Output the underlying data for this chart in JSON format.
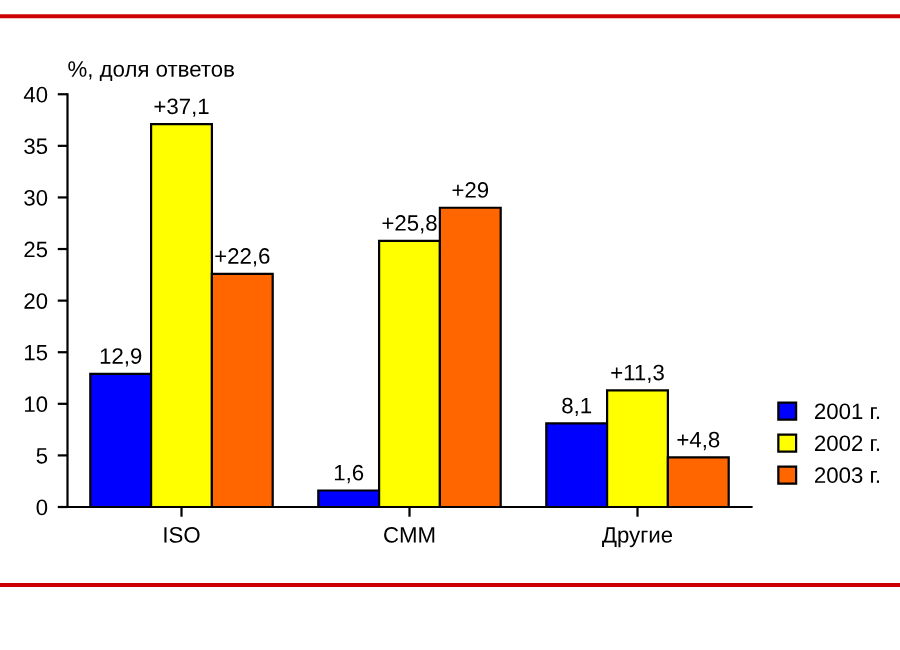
{
  "chart_data": {
    "type": "bar",
    "ylabel": "%, доля ответов",
    "categories": [
      "ISO",
      "CMM",
      "Другие"
    ],
    "series": [
      {
        "name": "2001 г.",
        "color": "#0000ff",
        "values": [
          12.9,
          1.6,
          8.1
        ],
        "value_labels": [
          "12,9",
          "1,6",
          "8,1"
        ]
      },
      {
        "name": "2002 г.",
        "color": "#ffff00",
        "values": [
          37.1,
          25.8,
          11.3
        ],
        "value_labels": [
          "+37,1",
          "+25,8",
          "+11,3"
        ]
      },
      {
        "name": "2003 г.",
        "color": "#ff6600",
        "values": [
          22.6,
          29,
          4.8
        ],
        "value_labels": [
          "+22,6",
          "+29",
          "+4,8"
        ]
      }
    ],
    "ylim": [
      0,
      40
    ],
    "yticks": [
      0,
      5,
      10,
      15,
      20,
      25,
      30,
      35,
      40
    ],
    "grid": false,
    "legend": "right"
  }
}
